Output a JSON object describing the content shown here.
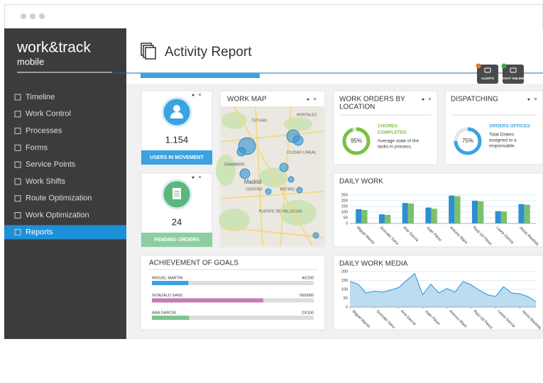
{
  "sidebar": {
    "logo": "work&track",
    "logo_sub": "mobile",
    "active": 8,
    "menu": [
      "Timeline",
      "Work Control",
      "Processes",
      "Forms",
      "Service Points",
      "Work Shifts",
      "Route Optimization",
      "Work Optimization",
      "Reports"
    ]
  },
  "header": {
    "title": "Activity Report",
    "buttons": [
      "ALERTS",
      "CHAT ONLINE"
    ]
  },
  "users": {
    "value": "1.154",
    "label": "USERS IN MOVEMENT"
  },
  "pending": {
    "value": "24",
    "label": "PENDING ORDERS"
  },
  "map": {
    "title": "WORK MAP",
    "labels": [
      "TETUAN",
      "HORTALEZ",
      "CHAMBERI",
      "CIUDAD LINEAL",
      "Madrid",
      "CENTRO",
      "RETIRO",
      "PUENTE DE VALLECAS"
    ]
  },
  "work_orders": {
    "title_lines": [
      "WORK ORDERS BY",
      "LOCATION"
    ],
    "percent": 95,
    "percent_label": "95%",
    "status_lines": [
      "CHORES",
      "COMPLETED"
    ],
    "description_lines": [
      "Average state of the",
      "tasks in process."
    ],
    "color": "#7ac143"
  },
  "dispatching": {
    "title_lines": [
      "DISPATCHING"
    ],
    "percent": 75,
    "percent_label": "75%",
    "status_lines": [
      "ORDERS OFFICES"
    ],
    "description_lines": [
      "Total Orders",
      "assigned to a",
      "responsable."
    ],
    "color": "#3aa3e0"
  },
  "goals": {
    "title": "ACHIEVEMENT OF GOALS",
    "items": [
      {
        "name": "MIGUEL MARTÍN",
        "label": "45/200",
        "value": 45,
        "target": 200,
        "color": "#3aa3e0"
      },
      {
        "name": "GONZALO SANZ",
        "label": "550/800",
        "value": 550,
        "target": 800,
        "color": "#c77bb5"
      },
      {
        "name": "ANA GARCÍA",
        "label": "23/100",
        "value": 23,
        "target": 100,
        "color": "#7cc48f"
      }
    ]
  },
  "chart_data": [
    {
      "type": "bar",
      "title": "DAILY WORK",
      "categories": [
        "Miguel Martín",
        "Gonzalo Sanz",
        "Ana García",
        "Juan Pérez",
        "Antonio Martí",
        "Raúl Gil Pérez",
        "Laura García",
        "Jesús Bautista"
      ],
      "series": [
        {
          "color": "#2e8fd0",
          "values": [
            125,
            80,
            180,
            140,
            245,
            200,
            108,
            170
          ]
        },
        {
          "color": "#7ac16b",
          "values": [
            118,
            75,
            175,
            130,
            240,
            195,
            105,
            165
          ]
        }
      ],
      "ylim": [
        0,
        250
      ],
      "yticks": [
        0,
        50,
        100,
        150,
        200,
        250
      ],
      "grid": true
    },
    {
      "type": "area",
      "title": "DAILY WORK MEDIA",
      "x": [
        0,
        1,
        2,
        3,
        4,
        5,
        6,
        7,
        8,
        9,
        10,
        11,
        12,
        13,
        14,
        15,
        16,
        17,
        18,
        19,
        20,
        21,
        22,
        23
      ],
      "series": [
        {
          "color": "#2e8fd0",
          "values": [
            145,
            130,
            80,
            90,
            85,
            95,
            110,
            150,
            190,
            70,
            130,
            80,
            105,
            85,
            145,
            125,
            95,
            70,
            60,
            115,
            80,
            75,
            60,
            30
          ]
        }
      ],
      "xlim": [
        0,
        23
      ],
      "xticks": [
        {
          "value": 0,
          "label": "Miguel Martín"
        },
        {
          "value": 3,
          "label": "Gonzalo Sanz"
        },
        {
          "value": 6,
          "label": "Ana García"
        },
        {
          "value": 9,
          "label": "Juan Pérez"
        },
        {
          "value": 12,
          "label": "Antonio Martí"
        },
        {
          "value": 15,
          "label": "Raúl Gil Pérez"
        },
        {
          "value": 18,
          "label": "Laura García"
        },
        {
          "value": 21,
          "label": "Jesús Bautista"
        }
      ],
      "ylim": [
        0,
        200
      ],
      "yticks": [
        0,
        50,
        100,
        150,
        200
      ],
      "grid": true
    }
  ]
}
